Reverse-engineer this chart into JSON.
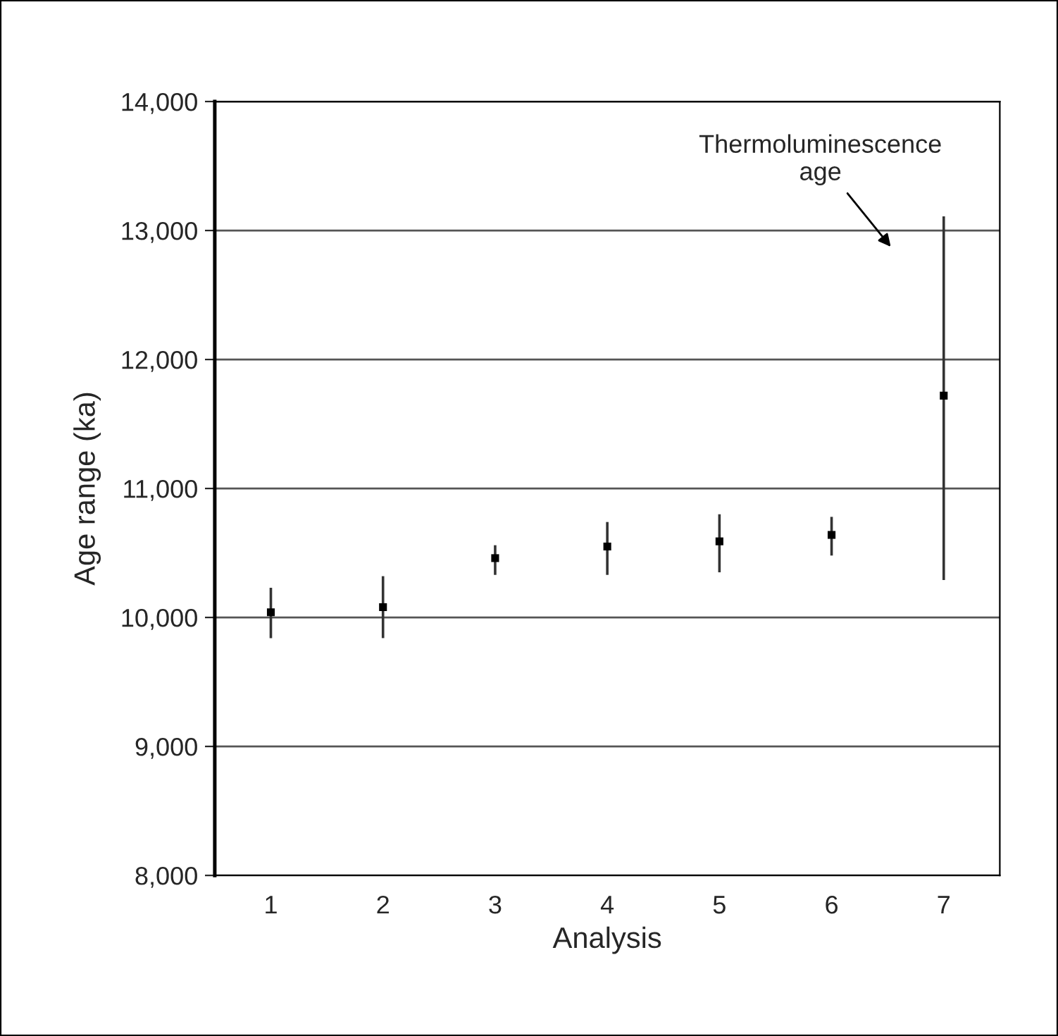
{
  "chart_data": {
    "type": "scatter",
    "xlabel": "Analysis",
    "ylabel": "Age range (ka)",
    "categories": [
      "1",
      "2",
      "3",
      "4",
      "5",
      "6",
      "7"
    ],
    "series": [
      {
        "color": "#000000",
        "values": [
          10040,
          10080,
          10460,
          10550,
          10590,
          10640,
          11720
        ],
        "errors": [
          [
            9840,
            10230
          ],
          [
            9840,
            10320
          ],
          [
            10330,
            10560
          ],
          [
            10330,
            10740
          ],
          [
            10350,
            10800
          ],
          [
            10480,
            10780
          ],
          [
            10290,
            13110
          ]
        ]
      }
    ],
    "marker": "square",
    "ylim": [
      8000,
      14000
    ],
    "yticks": [
      {
        "value": 8000,
        "label": "8,000"
      },
      {
        "value": 9000,
        "label": "9,000"
      },
      {
        "value": 10000,
        "label": "10,000"
      },
      {
        "value": 11000,
        "label": "11,000"
      },
      {
        "value": 12000,
        "label": "12,000"
      },
      {
        "value": 13000,
        "label": "13,000"
      },
      {
        "value": 14000,
        "label": "14,000"
      }
    ],
    "grid": "y",
    "annotations": [
      {
        "text": "Thermoluminescence\nage",
        "x": "7",
        "y": 12850
      }
    ]
  }
}
